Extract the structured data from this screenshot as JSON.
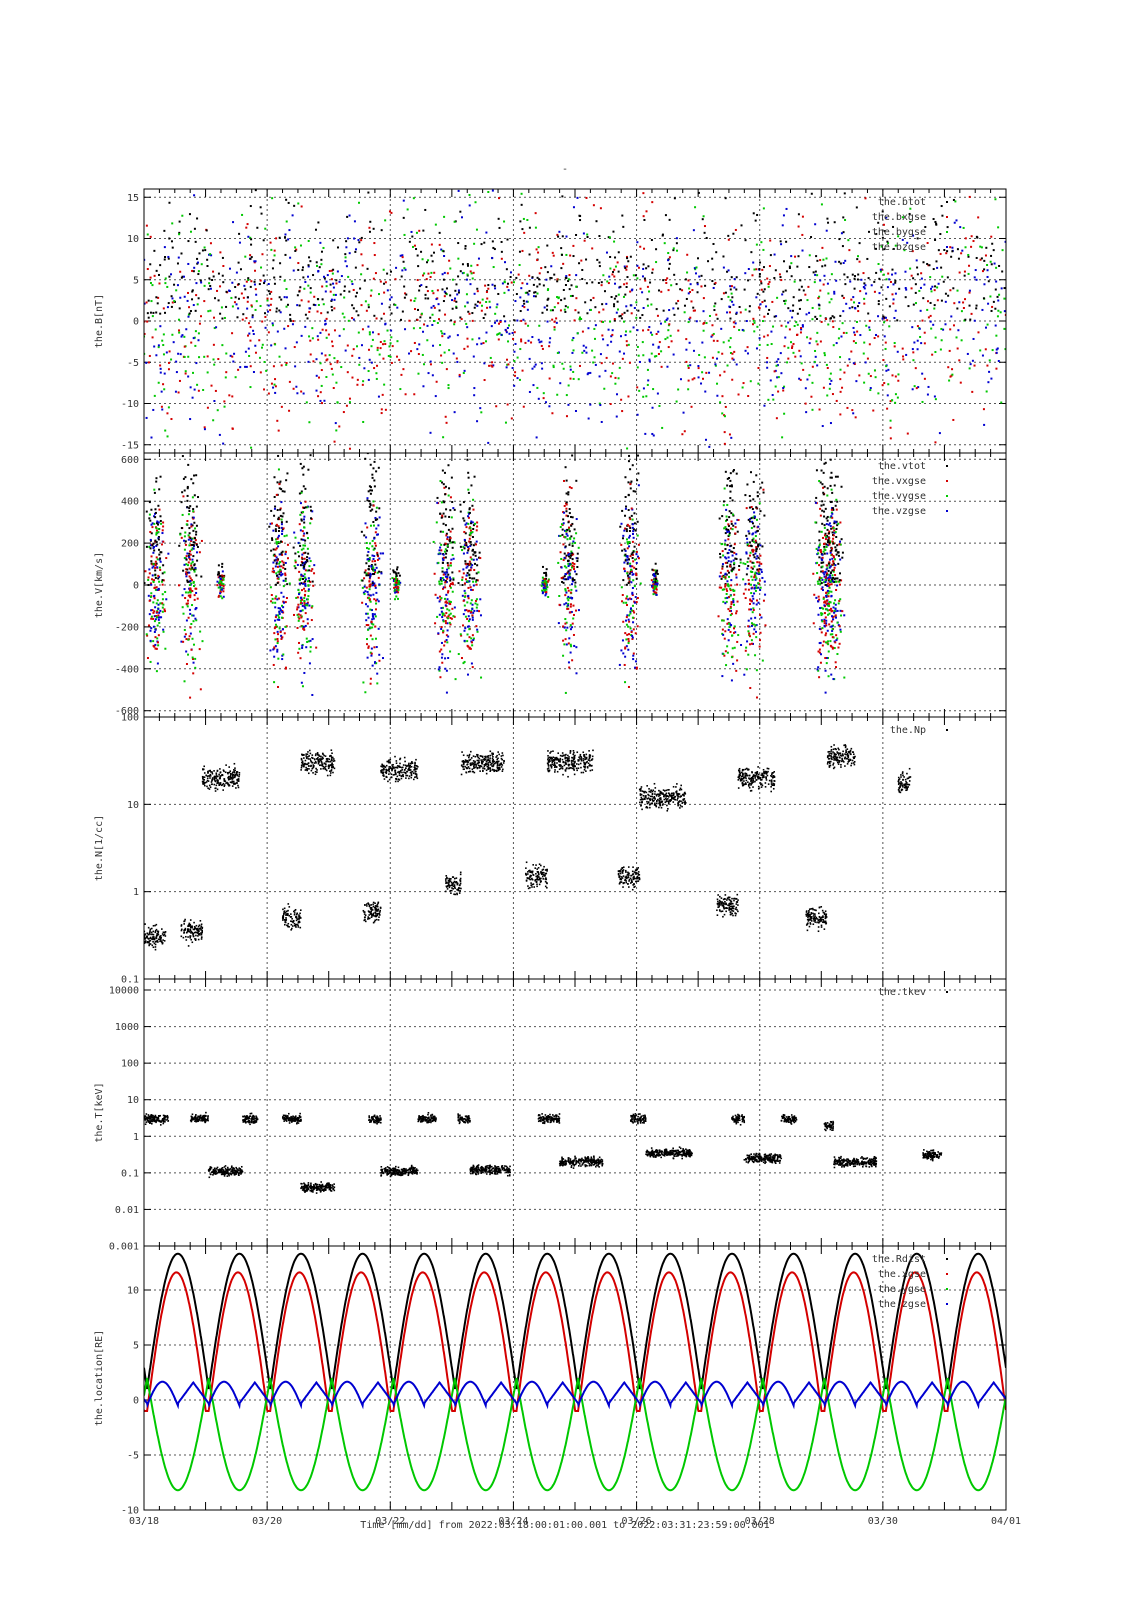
{
  "chart_title": "-",
  "x_axis": {
    "label": "Time [mm/dd]  from 2022:03:18:00:01:00.001  to  2022:03:31:23:59:00.001",
    "range": [
      "2022-03-18",
      "2022-04-01"
    ],
    "ticks": [
      {
        "date": "2022-03-18",
        "label": "03/18"
      },
      {
        "date": "2022-03-20",
        "label": "03/20"
      },
      {
        "date": "2022-03-22",
        "label": "03/22"
      },
      {
        "date": "2022-03-24",
        "label": "03/24"
      },
      {
        "date": "2022-03-26",
        "label": "03/26"
      },
      {
        "date": "2022-03-28",
        "label": "03/28"
      },
      {
        "date": "2022-03-30",
        "label": "03/30"
      },
      {
        "date": "2022-04-01",
        "label": "04/01"
      }
    ]
  },
  "colors": {
    "black": "#000000",
    "red": "#d40000",
    "green": "#00c800",
    "blue": "#0000d0",
    "grid": "#555555"
  },
  "chart_data": [
    {
      "type": "scatter",
      "ylabel": "the.B[nT]",
      "ylim": [
        -16,
        16
      ],
      "scale": "linear",
      "yticks": [
        -15,
        -10,
        -5,
        0,
        5,
        10,
        15
      ],
      "ytick_labels": [
        "-15",
        "-10",
        "-5",
        "0",
        "5",
        "10",
        "15"
      ],
      "legend": [
        "the.btot",
        "the.bxgse",
        "the.bygse",
        "the.bzgse"
      ],
      "legend_colors": [
        "#000000",
        "#d40000",
        "#00c800",
        "#0000d0"
      ]
    },
    {
      "type": "scatter",
      "ylabel": "the.V[km/s]",
      "ylim": [
        -630,
        630
      ],
      "scale": "linear",
      "yticks": [
        -600,
        -400,
        -200,
        0,
        200,
        400,
        600
      ],
      "ytick_labels": [
        "-600",
        "-400",
        "-200",
        "0",
        "200",
        "400",
        "600"
      ],
      "legend": [
        "the.vtot",
        "the.vxgse",
        "the.vygse",
        "the.vzgse"
      ],
      "legend_colors": [
        "#000000",
        "#d40000",
        "#00c800",
        "#0000d0"
      ]
    },
    {
      "type": "scatter",
      "ylabel": "the.N[1/cc]",
      "ylim": [
        0.1,
        100
      ],
      "scale": "log",
      "yticks": [
        0.1,
        1,
        10,
        100
      ],
      "ytick_labels": [
        "0.1",
        "1",
        "10",
        "100"
      ],
      "legend": [
        "the.Np"
      ],
      "legend_colors": [
        "#000000"
      ],
      "segments": [
        {
          "start": 18.0,
          "end": 18.35,
          "level": 0.3
        },
        {
          "start": 18.6,
          "end": 18.95,
          "level": 0.35
        },
        {
          "start": 18.95,
          "end": 19.55,
          "level": 20
        },
        {
          "start": 20.25,
          "end": 20.55,
          "level": 0.5
        },
        {
          "start": 20.55,
          "end": 21.1,
          "level": 30
        },
        {
          "start": 21.55,
          "end": 21.85,
          "level": 0.6
        },
        {
          "start": 21.85,
          "end": 22.45,
          "level": 25
        },
        {
          "start": 22.9,
          "end": 23.15,
          "level": 1.2
        },
        {
          "start": 23.15,
          "end": 23.85,
          "level": 30
        },
        {
          "start": 24.2,
          "end": 24.55,
          "level": 1.5
        },
        {
          "start": 24.55,
          "end": 25.3,
          "level": 30
        },
        {
          "start": 25.7,
          "end": 26.05,
          "level": 1.5
        },
        {
          "start": 26.05,
          "end": 26.8,
          "level": 12
        },
        {
          "start": 27.3,
          "end": 27.65,
          "level": 0.7
        },
        {
          "start": 27.65,
          "end": 28.25,
          "level": 20
        },
        {
          "start": 28.75,
          "end": 29.1,
          "level": 0.5
        },
        {
          "start": 29.1,
          "end": 29.55,
          "level": 35
        },
        {
          "start": 30.25,
          "end": 30.45,
          "level": 18
        }
      ]
    },
    {
      "type": "scatter",
      "ylabel": "the.T[keV]",
      "ylim": [
        0.001,
        20000
      ],
      "scale": "log",
      "yticks": [
        0.001,
        0.01,
        0.1,
        1,
        10,
        100,
        1000,
        10000
      ],
      "ytick_labels": [
        "0.001",
        "0.01",
        "0.1",
        "1",
        "10",
        "100",
        "1000",
        "10000"
      ],
      "legend": [
        "the.tkev"
      ],
      "legend_colors": [
        "#000000"
      ],
      "segments": [
        {
          "start": 18.0,
          "end": 18.4,
          "level": 3
        },
        {
          "start": 18.75,
          "end": 19.05,
          "level": 3
        },
        {
          "start": 19.05,
          "end": 19.6,
          "level": 0.11
        },
        {
          "start": 19.6,
          "end": 19.85,
          "level": 3
        },
        {
          "start": 20.25,
          "end": 20.55,
          "level": 3
        },
        {
          "start": 20.55,
          "end": 21.1,
          "level": 0.04
        },
        {
          "start": 21.65,
          "end": 21.85,
          "level": 3
        },
        {
          "start": 21.85,
          "end": 22.45,
          "level": 0.11
        },
        {
          "start": 22.45,
          "end": 22.75,
          "level": 3
        },
        {
          "start": 23.1,
          "end": 23.3,
          "level": 3
        },
        {
          "start": 23.3,
          "end": 23.95,
          "level": 0.12
        },
        {
          "start": 24.4,
          "end": 24.75,
          "level": 3
        },
        {
          "start": 24.75,
          "end": 25.45,
          "level": 0.2
        },
        {
          "start": 25.9,
          "end": 26.15,
          "level": 3
        },
        {
          "start": 26.15,
          "end": 26.9,
          "level": 0.35
        },
        {
          "start": 27.55,
          "end": 27.75,
          "level": 3
        },
        {
          "start": 27.75,
          "end": 28.35,
          "level": 0.25
        },
        {
          "start": 28.35,
          "end": 28.6,
          "level": 3
        },
        {
          "start": 29.05,
          "end": 29.2,
          "level": 2
        },
        {
          "start": 29.2,
          "end": 29.9,
          "level": 0.2
        },
        {
          "start": 30.65,
          "end": 30.95,
          "level": 0.3
        }
      ]
    },
    {
      "type": "line",
      "ylabel": "the.location[RE]",
      "ylim": [
        -10,
        14
      ],
      "scale": "linear",
      "yticks": [
        -10,
        -5,
        0,
        5,
        10
      ],
      "ytick_labels": [
        "-10",
        "-5",
        "0",
        "5",
        "10"
      ],
      "legend": [
        "the.Rdist",
        "the.xgse",
        "the.ygse",
        "the.zgse"
      ],
      "legend_colors": [
        "#000000",
        "#d40000",
        "#00c800",
        "#0000d0"
      ],
      "orbit_period_days": 1.0,
      "rdist_max": 13.3,
      "xgse_max": 11.6,
      "ygse_min": -8.2,
      "zgse_max": 1.9
    }
  ]
}
